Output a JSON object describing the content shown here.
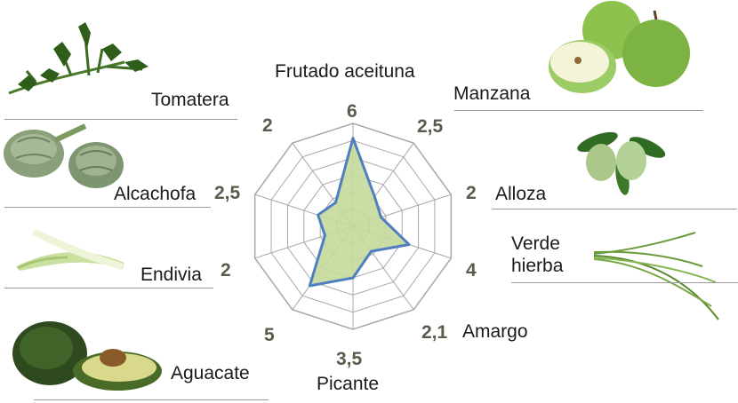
{
  "chart_data": {
    "type": "radar",
    "title": "",
    "scale_max": 7,
    "rings": 6,
    "axes": [
      {
        "label": "Frutado aceituna",
        "value": 6,
        "display": "6"
      },
      {
        "label": "Manzana",
        "value": 2.5,
        "display": "2,5"
      },
      {
        "label": "Alloza",
        "value": 2,
        "display": "2"
      },
      {
        "label": "Verde hierba",
        "value": 4,
        "display": "4"
      },
      {
        "label": "Amargo",
        "value": 2.1,
        "display": "2,1"
      },
      {
        "label": "Picante",
        "value": 3.5,
        "display": "3,5"
      },
      {
        "label": "Aguacate",
        "value": 5,
        "display": "5"
      },
      {
        "label": "Endivia",
        "value": 2,
        "display": "2"
      },
      {
        "label": "Alcachofa",
        "value": 2.5,
        "display": "2,5"
      },
      {
        "label": "Tomatera",
        "value": 2,
        "display": "2"
      }
    ],
    "colors": {
      "fill": "#c4d99b",
      "stroke": "#4f7fbf",
      "grid": "#a8a8a8",
      "value_text": "#5b5b4d"
    }
  },
  "pictures": {
    "tomatera": "tomato-plant-icon",
    "alcachofa": "artichoke-icon",
    "endivia": "endive-icon",
    "aguacate": "avocado-icon",
    "manzana": "green-apple-icon",
    "alloza": "almond-icon",
    "verde_hierba": "grass-icon"
  }
}
